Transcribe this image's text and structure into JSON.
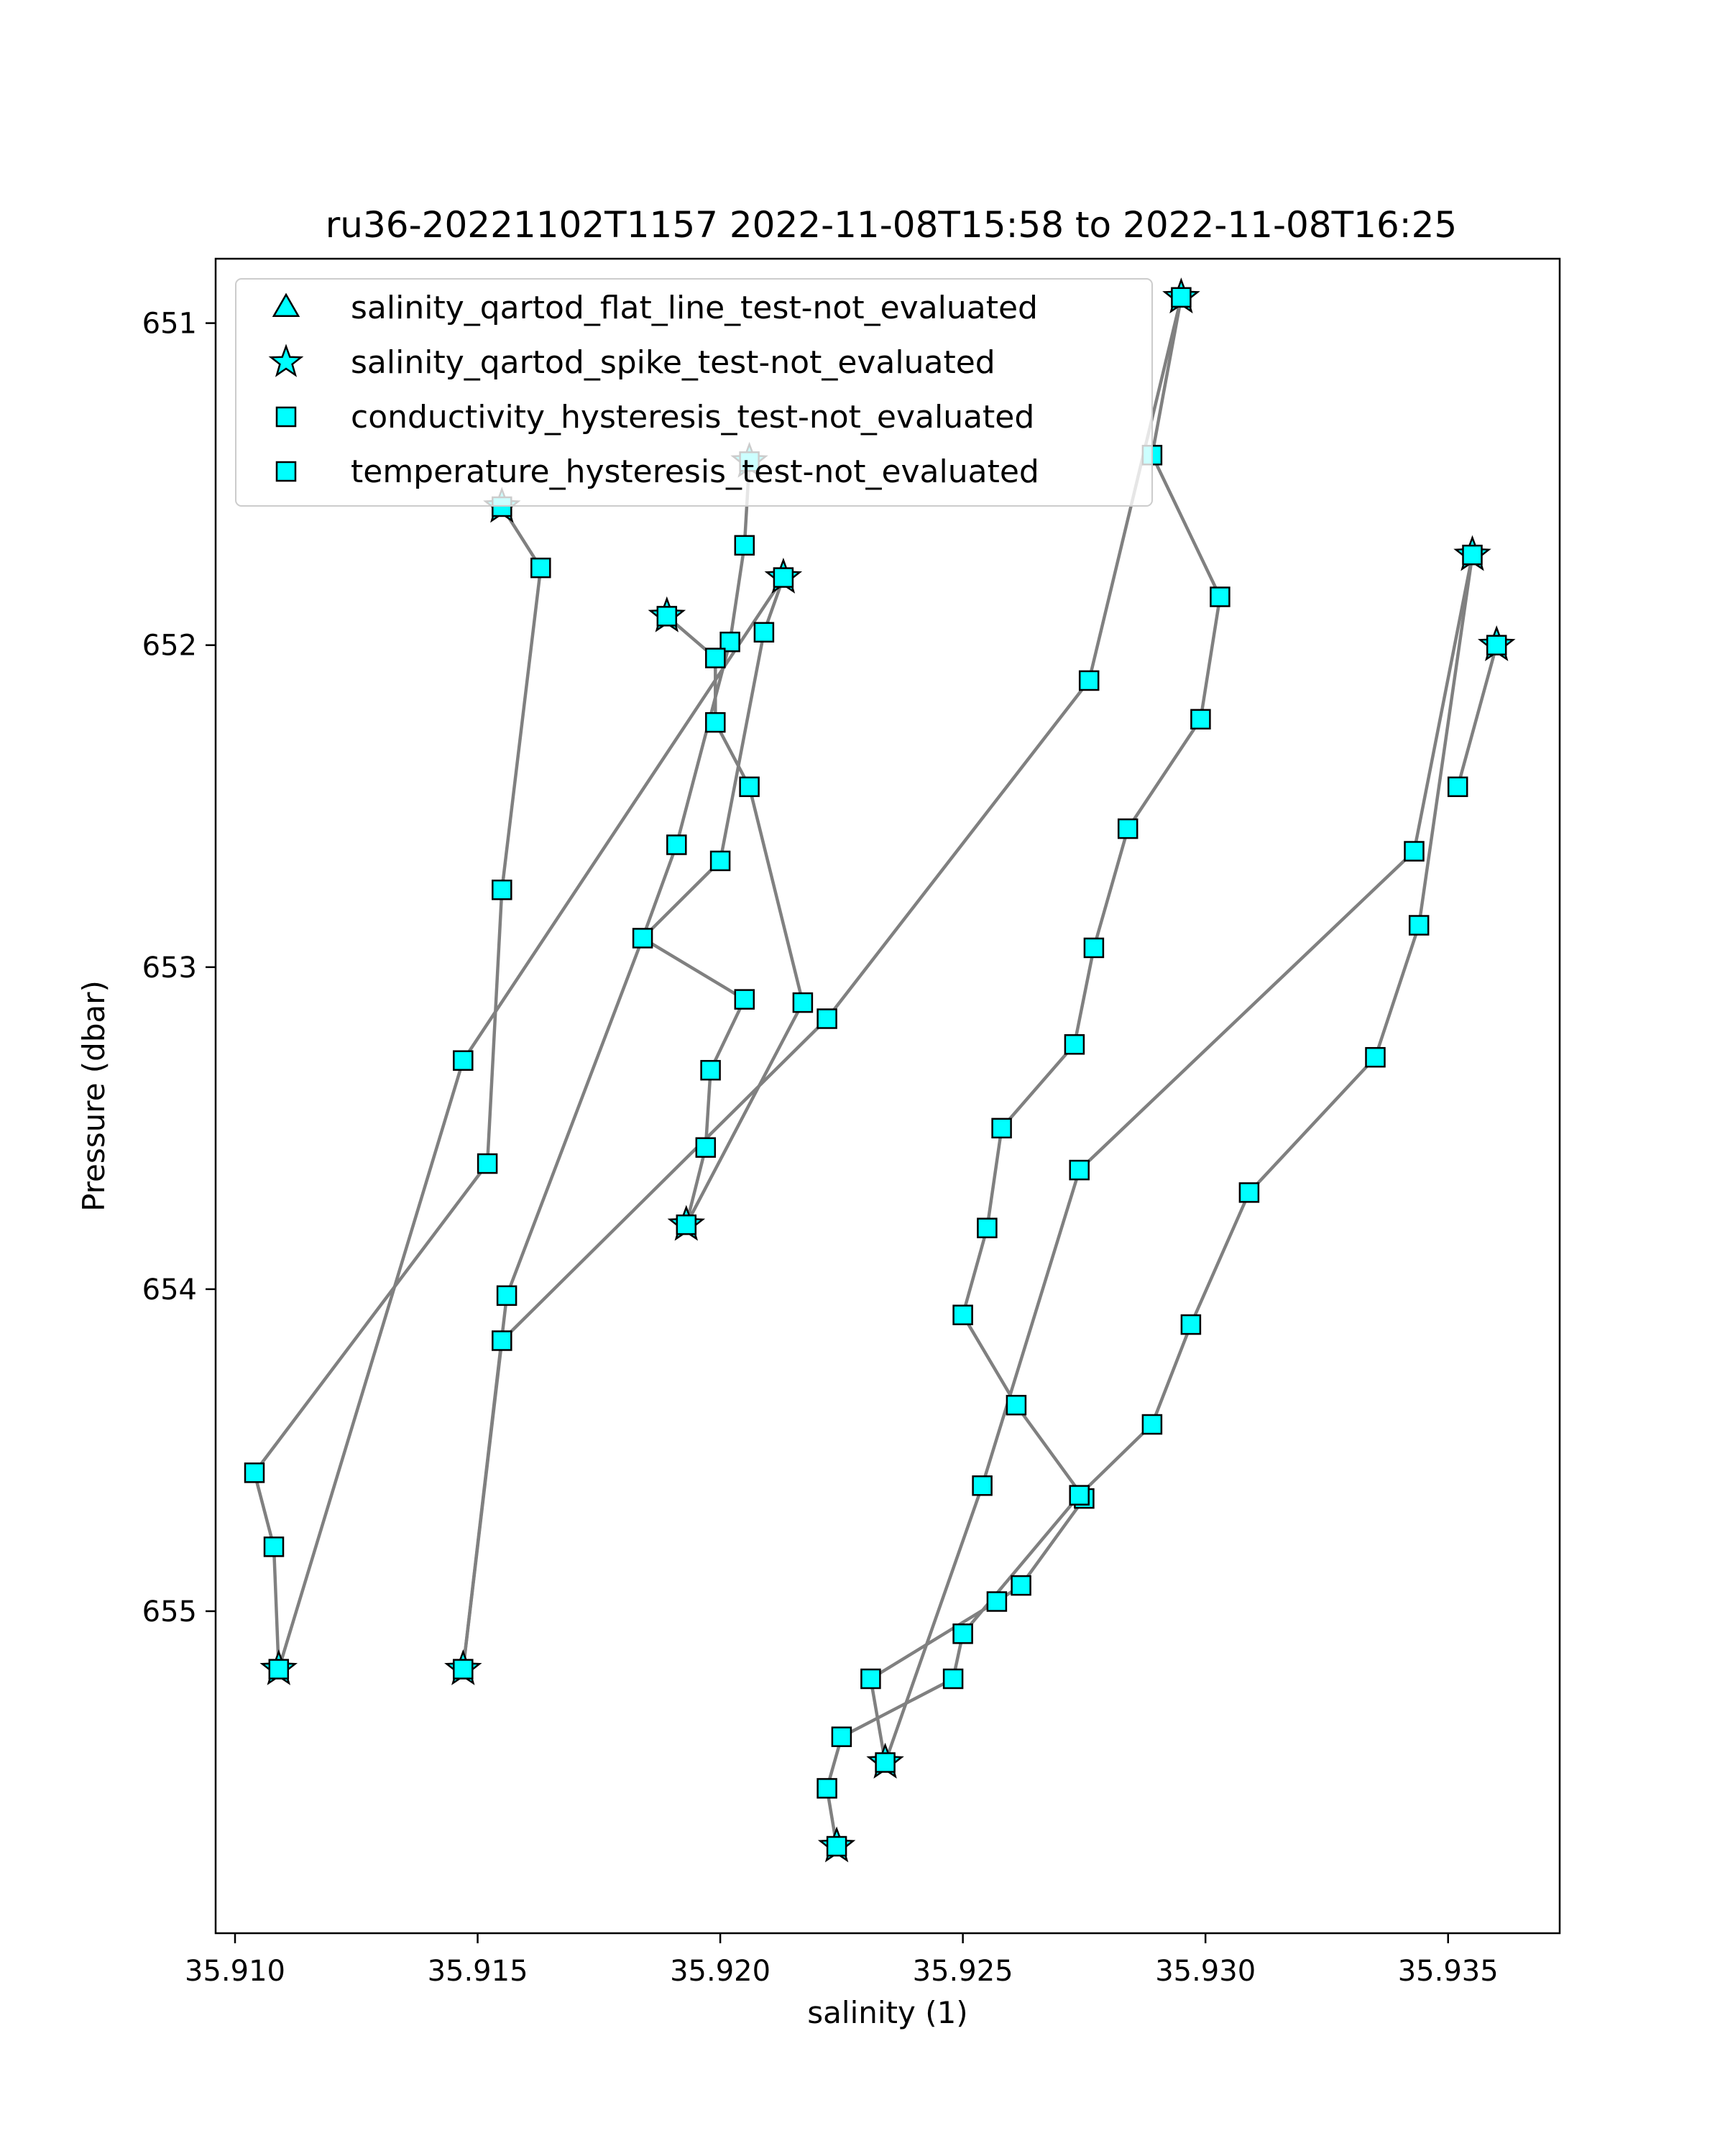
{
  "chart_data": {
    "type": "scatter",
    "title": "ru36-20221102T1157 2022-11-08T15:58 to 2022-11-08T16:25",
    "xlabel": "salinity (1)",
    "ylabel": "Pressure (dbar)",
    "xlim": [
      35.9096,
      35.9373
    ],
    "ylim": [
      656.0,
      650.8
    ],
    "y_inverted": true,
    "grid": false,
    "legend_location": "upper-left",
    "xticks": [
      35.91,
      35.915,
      35.92,
      35.925,
      35.93,
      35.935
    ],
    "xtick_labels": [
      "35.910",
      "35.915",
      "35.920",
      "35.925",
      "35.930",
      "35.935"
    ],
    "yticks": [
      651,
      652,
      653,
      654,
      655
    ],
    "ytick_labels": [
      "651",
      "652",
      "653",
      "654",
      "655"
    ],
    "line_color": "#808080",
    "marker_color": "#00ffff",
    "marker_edge_color": "#000000",
    "legend": [
      {
        "label": "salinity_qartod_flat_line_test-not_evaluated",
        "marker": "triangle"
      },
      {
        "label": "salinity_qartod_spike_test-not_evaluated",
        "marker": "star"
      },
      {
        "label": "conductivity_hysteresis_test-not_evaluated",
        "marker": "square"
      },
      {
        "label": "temperature_hysteresis_test-not_evaluated",
        "marker": "square"
      }
    ],
    "profiles": [
      [
        [
          35.9155,
          651.57
        ],
        [
          35.9163,
          651.76
        ],
        [
          35.9155,
          652.76
        ],
        [
          35.9152,
          653.61
        ],
        [
          35.9104,
          654.57
        ],
        [
          35.9108,
          654.8
        ],
        [
          35.9109,
          655.18
        ]
      ],
      [
        [
          35.9109,
          655.18
        ],
        [
          35.9147,
          653.29
        ],
        [
          35.9213,
          651.79
        ]
      ],
      [
        [
          35.9206,
          651.43
        ],
        [
          35.9205,
          651.69
        ],
        [
          35.9202,
          651.99
        ],
        [
          35.9191,
          652.62
        ],
        [
          35.9184,
          652.91
        ],
        [
          35.9156,
          654.02
        ],
        [
          35.9147,
          655.18
        ]
      ],
      [
        [
          35.9189,
          651.91
        ],
        [
          35.9199,
          652.04
        ],
        [
          35.9199,
          652.24
        ],
        [
          35.9206,
          652.44
        ],
        [
          35.9217,
          653.11
        ],
        [
          35.9193,
          653.8
        ]
      ],
      [
        [
          35.9193,
          653.8
        ],
        [
          35.9197,
          653.56
        ],
        [
          35.9198,
          653.32
        ],
        [
          35.9205,
          653.1
        ],
        [
          35.9184,
          652.91
        ],
        [
          35.92,
          652.67
        ],
        [
          35.9209,
          651.96
        ],
        [
          35.9213,
          651.79
        ]
      ],
      [
        [
          35.9295,
          650.92
        ],
        [
          35.9276,
          652.11
        ],
        [
          35.9222,
          653.16
        ],
        [
          35.9155,
          654.16
        ],
        [
          35.9147,
          655.18
        ]
      ],
      [
        [
          35.9295,
          650.92
        ],
        [
          35.9289,
          651.41
        ],
        [
          35.9303,
          651.85
        ],
        [
          35.9299,
          652.23
        ],
        [
          35.9284,
          652.57
        ],
        [
          35.9277,
          652.94
        ],
        [
          35.9273,
          653.24
        ],
        [
          35.9258,
          653.5
        ],
        [
          35.9255,
          653.81
        ],
        [
          35.925,
          654.08
        ],
        [
          35.9261,
          654.36
        ],
        [
          35.9275,
          654.65
        ],
        [
          35.9262,
          654.92
        ],
        [
          35.9257,
          654.97
        ],
        [
          35.9231,
          655.21
        ],
        [
          35.9234,
          655.47
        ]
      ],
      [
        [
          35.9234,
          655.47
        ],
        [
          35.9254,
          654.61
        ],
        [
          35.9274,
          653.63
        ],
        [
          35.9343,
          652.64
        ],
        [
          35.9355,
          651.72
        ]
      ],
      [
        [
          35.9355,
          651.72
        ],
        [
          35.9344,
          652.87
        ],
        [
          35.9335,
          653.28
        ],
        [
          35.9309,
          653.7
        ],
        [
          35.9297,
          654.11
        ],
        [
          35.9289,
          654.42
        ],
        [
          35.9274,
          654.64
        ],
        [
          35.925,
          655.07
        ],
        [
          35.9248,
          655.21
        ],
        [
          35.9225,
          655.39
        ],
        [
          35.9222,
          655.55
        ],
        [
          35.9224,
          655.73
        ]
      ],
      [
        [
          35.936,
          652.0
        ],
        [
          35.9352,
          652.44
        ]
      ]
    ],
    "spike_points": [
      [
        35.9155,
        651.57
      ],
      [
        35.9109,
        655.18
      ],
      [
        35.9206,
        651.43
      ],
      [
        35.9189,
        651.91
      ],
      [
        35.9213,
        651.79
      ],
      [
        35.9193,
        653.8
      ],
      [
        35.9295,
        650.92
      ],
      [
        35.9147,
        655.18
      ],
      [
        35.9234,
        655.47
      ],
      [
        35.9355,
        651.72
      ],
      [
        35.936,
        652.0
      ],
      [
        35.9224,
        655.73
      ]
    ]
  }
}
